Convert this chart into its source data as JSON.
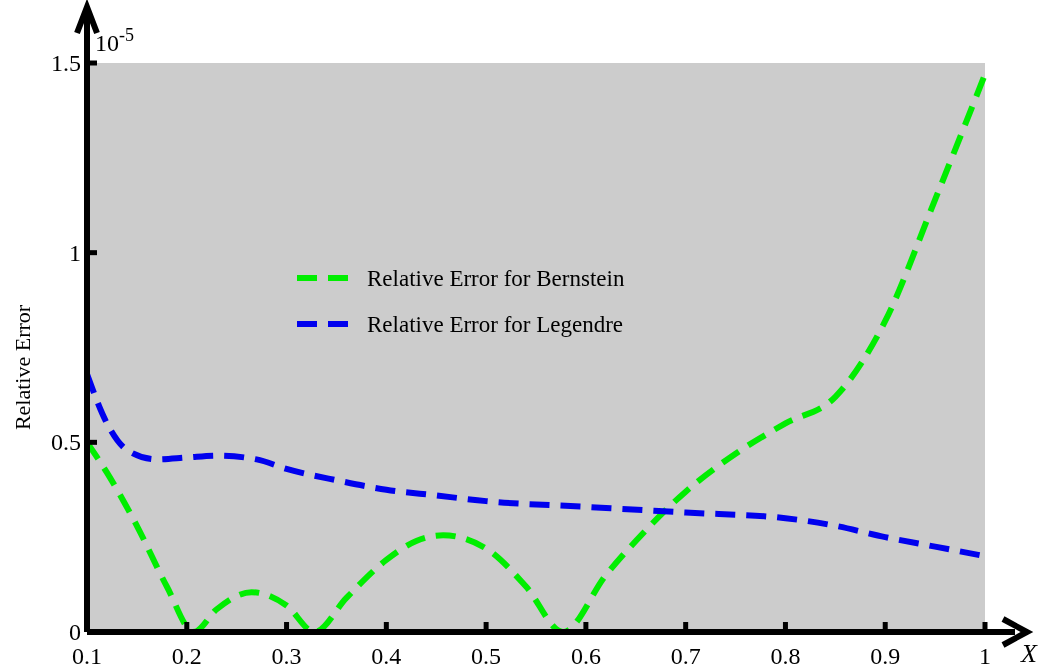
{
  "chart_data": {
    "type": "line",
    "xlabel": "X",
    "ylabel": "Relative Error",
    "annotations": [
      "10$^{-5}$"
    ],
    "xlim": [
      0.1,
      1
    ],
    "xticks": [
      0.1,
      0.2,
      0.3,
      0.4,
      0.5,
      0.6,
      0.7,
      0.8,
      0.9,
      1
    ],
    "ylim": [
      0,
      1.5
    ],
    "yticks": [
      0,
      0.5,
      1,
      1.5
    ],
    "grid": false,
    "legend": "center",
    "line_style": "dashed",
    "series": [
      {
        "name": "Relative Error for Bernstein",
        "color": "#00ee00",
        "x": [
          0.1,
          0.12,
          0.15,
          0.18,
          0.207,
          0.23,
          0.265,
          0.3,
          0.328,
          0.36,
          0.4,
          0.43,
          0.457,
          0.5,
          0.54,
          0.577,
          0.62,
          0.65,
          0.7,
          0.75,
          0.8,
          0.85,
          0.9,
          0.95,
          1
        ],
        "values": [
          0.5,
          0.42,
          0.28,
          0.12,
          0,
          0.06,
          0.105,
          0.07,
          0,
          0.09,
          0.19,
          0.24,
          0.255,
          0.22,
          0.12,
          0,
          0.15,
          0.24,
          0.37,
          0.47,
          0.55,
          0.62,
          0.82,
          1.14,
          1.47
        ]
      },
      {
        "name": "Relative Error for Legendre",
        "color": "#0000ee",
        "x": [
          0.1,
          0.12,
          0.14,
          0.17,
          0.2,
          0.23,
          0.27,
          0.3,
          0.35,
          0.4,
          0.45,
          0.5,
          0.6,
          0.7,
          0.8,
          0.85,
          0.9,
          0.95,
          1
        ],
        "values": [
          0.68,
          0.55,
          0.48,
          0.455,
          0.46,
          0.465,
          0.455,
          0.43,
          0.4,
          0.375,
          0.36,
          0.345,
          0.33,
          0.315,
          0.3,
          0.28,
          0.25,
          0.225,
          0.2
        ]
      }
    ]
  }
}
